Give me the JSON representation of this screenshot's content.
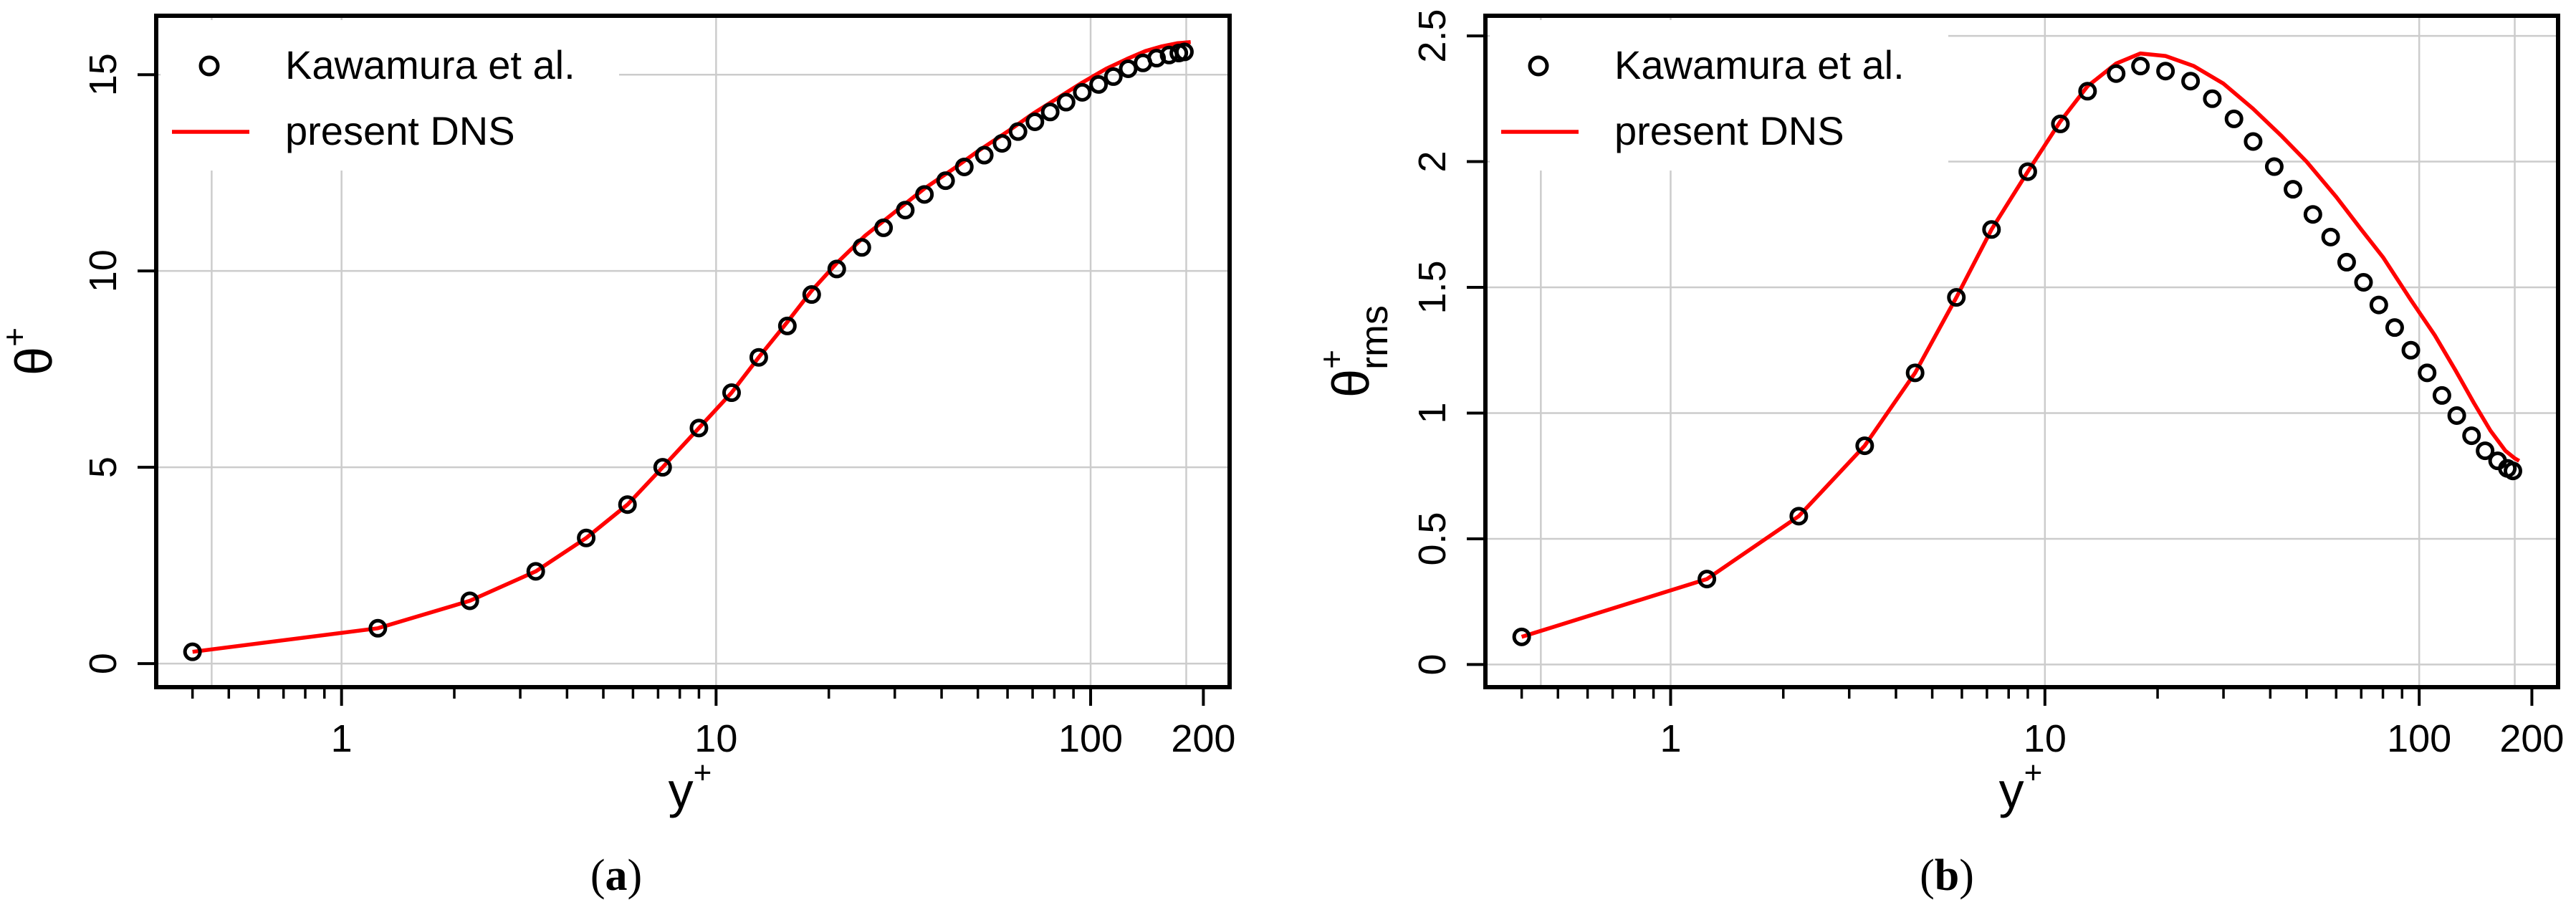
{
  "colors": {
    "dns_line": "#ff0000",
    "markers": "#000000",
    "grid": "#cccccc",
    "frame": "#000000",
    "background": "#ffffff"
  },
  "chart_data": [
    {
      "type": "line",
      "panel_label": "(a)",
      "panel_label_parts": {
        "open": "(",
        "letter": "a",
        "close": ")"
      },
      "title": "",
      "xlabel": {
        "base": "y",
        "sup": "+"
      },
      "ylabel": {
        "base": "θ",
        "sup": "+",
        "sub": ""
      },
      "x_scale": "log",
      "xlim": [
        0.32,
        235
      ],
      "ylim": [
        -0.6,
        16.5
      ],
      "x_ticks": [
        1,
        10,
        100,
        200
      ],
      "x_tick_labels": [
        "1",
        "10",
        "100",
        "200"
      ],
      "x_minor_ticks": [
        0.4,
        0.5,
        0.6,
        0.7,
        0.8,
        0.9,
        2,
        3,
        4,
        5,
        6,
        7,
        8,
        9,
        20,
        30,
        40,
        50,
        60,
        70,
        80,
        90
      ],
      "x_grid": [
        0.45,
        1,
        10,
        100,
        180
      ],
      "y_ticks": [
        0,
        5,
        10,
        15
      ],
      "y_tick_labels": [
        "0",
        "5",
        "10",
        "15"
      ],
      "grid": true,
      "legend": {
        "position": "top-left",
        "entries": [
          "Kawamura et al.",
          "present DNS"
        ]
      },
      "series": [
        {
          "name": "Kawamura et al.",
          "style": "points",
          "x": [
            0.4,
            1.25,
            2.2,
            3.3,
            4.5,
            5.8,
            7.2,
            9.0,
            11.0,
            13.0,
            15.5,
            18.0,
            21.0,
            24.5,
            28.0,
            32.0,
            36.0,
            41.0,
            46.0,
            52.0,
            58.0,
            64.0,
            71.0,
            78.0,
            86.0,
            95.0,
            105.0,
            115.0,
            126.0,
            138.0,
            150.0,
            162.0,
            172.0,
            178.0
          ],
          "y": [
            0.3,
            0.9,
            1.6,
            2.35,
            3.2,
            4.05,
            5.0,
            6.0,
            6.9,
            7.8,
            8.6,
            9.4,
            10.05,
            10.6,
            11.1,
            11.55,
            11.95,
            12.3,
            12.65,
            12.95,
            13.25,
            13.55,
            13.8,
            14.05,
            14.3,
            14.55,
            14.75,
            14.95,
            15.15,
            15.3,
            15.42,
            15.5,
            15.55,
            15.58
          ]
        },
        {
          "name": "present DNS",
          "style": "line",
          "x": [
            0.4,
            1.25,
            2.2,
            3.3,
            4.5,
            5.8,
            7.2,
            9.0,
            11.0,
            13.0,
            15.5,
            18.0,
            21.0,
            25.0,
            30.0,
            36.0,
            43.0,
            50.0,
            60.0,
            70.0,
            80.0,
            95.0,
            110.0,
            125.0,
            140.0,
            155.0,
            170.0,
            180.0,
            185.0
          ],
          "y": [
            0.3,
            0.9,
            1.6,
            2.35,
            3.2,
            4.05,
            5.0,
            6.0,
            6.9,
            7.8,
            8.7,
            9.5,
            10.2,
            10.9,
            11.5,
            12.1,
            12.6,
            13.05,
            13.55,
            14.0,
            14.35,
            14.8,
            15.15,
            15.4,
            15.6,
            15.72,
            15.8,
            15.82,
            15.83
          ]
        }
      ]
    },
    {
      "type": "line",
      "panel_label": "(b)",
      "panel_label_parts": {
        "open": "(",
        "letter": "b",
        "close": ")"
      },
      "title": "",
      "xlabel": {
        "base": "y",
        "sup": "+"
      },
      "ylabel": {
        "base": "θ",
        "sup": "+",
        "sub": "rms"
      },
      "x_scale": "log",
      "xlim": [
        0.32,
        235
      ],
      "ylim": [
        -0.09,
        2.58
      ],
      "x_ticks": [
        1,
        10,
        100,
        200
      ],
      "x_tick_labels": [
        "1",
        "10",
        "100",
        "200"
      ],
      "x_minor_ticks": [
        0.4,
        0.5,
        0.6,
        0.7,
        0.8,
        0.9,
        2,
        3,
        4,
        5,
        6,
        7,
        8,
        9,
        20,
        30,
        40,
        50,
        60,
        70,
        80,
        90
      ],
      "x_grid": [
        0.45,
        1,
        10,
        100,
        180
      ],
      "y_ticks": [
        0,
        0.5,
        1,
        1.5,
        2,
        2.5
      ],
      "y_tick_labels": [
        "0",
        "0.5",
        "1",
        "1.5",
        "2",
        "2.5"
      ],
      "grid": true,
      "legend": {
        "position": "top-left",
        "entries": [
          "Kawamura et al.",
          "present DNS"
        ]
      },
      "series": [
        {
          "name": "Kawamura et al.",
          "style": "points",
          "x": [
            0.4,
            1.25,
            2.2,
            3.3,
            4.5,
            5.8,
            7.2,
            9.0,
            11.0,
            13.0,
            15.5,
            18.0,
            21.0,
            24.5,
            28.0,
            32.0,
            36.0,
            41.0,
            46.0,
            52.0,
            58.0,
            64.0,
            71.0,
            78.0,
            86.0,
            95.0,
            105.0,
            115.0,
            126.0,
            138.0,
            150.0,
            162.0,
            172.0,
            178.0
          ],
          "y": [
            0.11,
            0.34,
            0.59,
            0.87,
            1.16,
            1.46,
            1.73,
            1.96,
            2.15,
            2.28,
            2.35,
            2.38,
            2.36,
            2.32,
            2.25,
            2.17,
            2.08,
            1.98,
            1.89,
            1.79,
            1.7,
            1.6,
            1.52,
            1.43,
            1.34,
            1.25,
            1.16,
            1.07,
            0.99,
            0.91,
            0.85,
            0.81,
            0.78,
            0.77
          ]
        },
        {
          "name": "present DNS",
          "style": "line",
          "x": [
            0.4,
            1.25,
            2.2,
            3.3,
            4.5,
            5.8,
            7.2,
            9.0,
            11.0,
            13.0,
            15.5,
            18.0,
            21.0,
            25.0,
            30.0,
            36.0,
            43.0,
            50.0,
            60.0,
            70.0,
            80.0,
            95.0,
            110.0,
            125.0,
            140.0,
            155.0,
            170.0,
            180.0,
            185.0
          ],
          "y": [
            0.11,
            0.34,
            0.59,
            0.87,
            1.16,
            1.46,
            1.73,
            1.96,
            2.16,
            2.3,
            2.39,
            2.43,
            2.42,
            2.38,
            2.31,
            2.21,
            2.1,
            2.0,
            1.86,
            1.73,
            1.62,
            1.45,
            1.31,
            1.17,
            1.04,
            0.93,
            0.85,
            0.82,
            0.81
          ]
        }
      ]
    }
  ]
}
